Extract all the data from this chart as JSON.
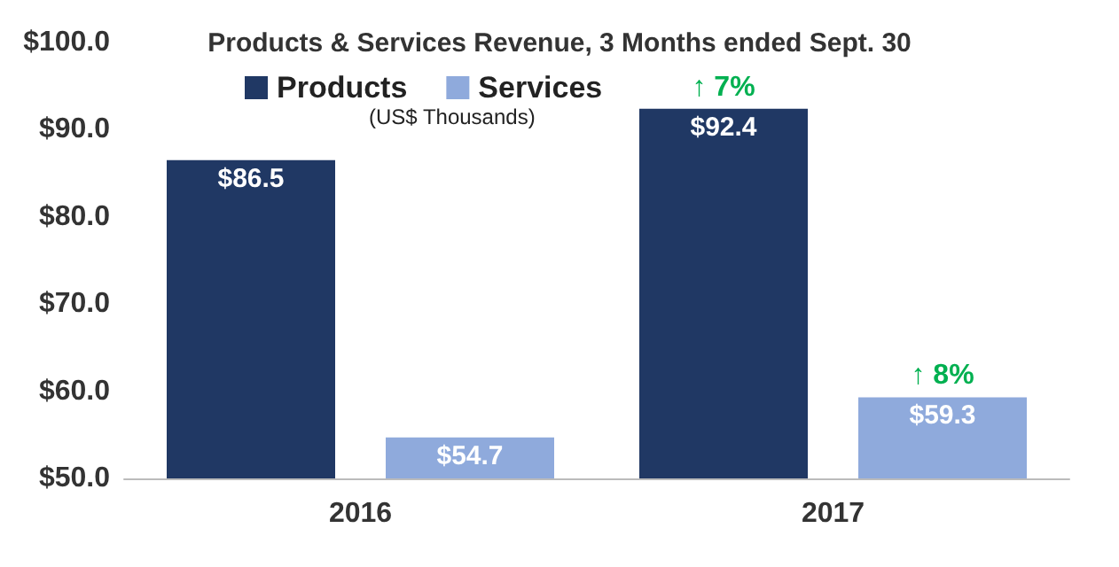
{
  "chart_data": {
    "type": "bar",
    "title": "Products & Services Revenue, 3 Months ended Sept. 30",
    "subtitle": "(US$ Thousands)",
    "categories": [
      "2016",
      "2017"
    ],
    "series": [
      {
        "name": "Products",
        "color": "#203864",
        "values": [
          86.5,
          92.4
        ],
        "value_labels": [
          "$86.5",
          "$92.4"
        ]
      },
      {
        "name": "Services",
        "color": "#8faadc",
        "values": [
          54.7,
          59.3
        ],
        "value_labels": [
          "$54.7",
          "$59.3"
        ]
      }
    ],
    "ylim": [
      50,
      100
    ],
    "yticks": [
      {
        "value": 50,
        "label": "$50.0"
      },
      {
        "value": 60,
        "label": "$60.0"
      },
      {
        "value": 70,
        "label": "$70.0"
      },
      {
        "value": 80,
        "label": "$80.0"
      },
      {
        "value": 90,
        "label": "$90.0"
      },
      {
        "value": 100,
        "label": "$100.0"
      }
    ],
    "annotations": [
      "↑ 7%",
      "↑ 8%"
    ],
    "legend": "top left",
    "grid": false
  }
}
